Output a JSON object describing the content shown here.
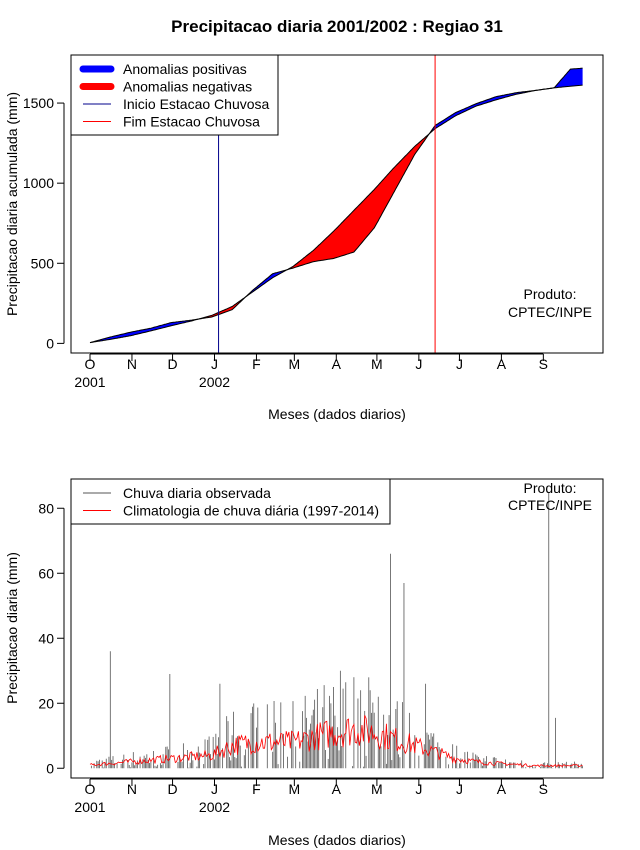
{
  "chart_data": [
    {
      "type": "area",
      "title": "Precipitacao diaria 2001/2002 : Regiao 31",
      "xlabel": "Meses (dados diarios)",
      "ylabel": "Precipitacao diaria acumulada (mm)",
      "x_tick_labels": [
        "O",
        "N",
        "D",
        "J",
        "F",
        "M",
        "A",
        "M",
        "J",
        "J",
        "A",
        "S"
      ],
      "year_labels": [
        "2001",
        "2002"
      ],
      "y_ticks": [
        0,
        500,
        1000,
        1500
      ],
      "ylim": [
        -60,
        1800
      ],
      "legend": {
        "placement": "top-left",
        "entries": [
          {
            "label": "Anomalias positivas",
            "color": "#0000ff",
            "style": "thick"
          },
          {
            "label": "Anomalias negativas",
            "color": "#ff0000",
            "style": "thick"
          },
          {
            "label": "Inicio Estacao Chuvosa",
            "color": "#00008b",
            "style": "thin"
          },
          {
            "label": "Fim Estacao Chuvosa",
            "color": "#ff0000",
            "style": "thin"
          }
        ]
      },
      "annotation": [
        "Produto:",
        "CPTEC/INPE"
      ],
      "season_start_day": 95,
      "season_end_day": 255,
      "series": [
        {
          "name": "Observada",
          "x_days": [
            0,
            15,
            30,
            45,
            60,
            75,
            90,
            105,
            120,
            135,
            150,
            165,
            180,
            195,
            210,
            225,
            240,
            255,
            270,
            285,
            300,
            315,
            330,
            343,
            355,
            364
          ],
          "values": [
            5,
            40,
            70,
            95,
            130,
            145,
            165,
            210,
            330,
            435,
            470,
            510,
            530,
            570,
            720,
            950,
            1180,
            1360,
            1440,
            1495,
            1540,
            1565,
            1580,
            1595,
            1712,
            1718
          ]
        },
        {
          "name": "Climatologia",
          "x_days": [
            0,
            15,
            30,
            45,
            60,
            75,
            90,
            105,
            120,
            135,
            150,
            165,
            180,
            195,
            210,
            225,
            240,
            255,
            270,
            285,
            300,
            315,
            330,
            343,
            355,
            364
          ],
          "values": [
            5,
            25,
            48,
            78,
            110,
            140,
            175,
            230,
            320,
            410,
            480,
            580,
            700,
            830,
            960,
            1100,
            1230,
            1340,
            1420,
            1480,
            1520,
            1555,
            1580,
            1595,
            1605,
            1612
          ]
        }
      ]
    },
    {
      "type": "bar",
      "title": "",
      "xlabel": "Meses (dados diarios)",
      "ylabel": "Precipitacao diaria (mm)",
      "x_tick_labels": [
        "O",
        "N",
        "D",
        "J",
        "F",
        "M",
        "A",
        "M",
        "J",
        "J",
        "A",
        "S"
      ],
      "year_labels": [
        "2001",
        "2002"
      ],
      "y_ticks": [
        0,
        20,
        40,
        60,
        80
      ],
      "ylim": [
        -3,
        89
      ],
      "legend": {
        "placement": "top-left",
        "entries": [
          {
            "label": "Chuva diaria observada",
            "color": "#555555"
          },
          {
            "label": "Climatologia de chuva diária (1997-2014)",
            "color": "#ff0000"
          }
        ]
      },
      "annotation": [
        "Produto:",
        "CPTEC/INPE"
      ],
      "notable_observed_values": [
        {
          "day": 15,
          "value": 36
        },
        {
          "day": 59,
          "value": 29
        },
        {
          "day": 96,
          "value": 26
        },
        {
          "day": 185,
          "value": 30
        },
        {
          "day": 180,
          "value": 25
        },
        {
          "day": 200,
          "value": 24
        },
        {
          "day": 207,
          "value": 24
        },
        {
          "day": 213,
          "value": 22
        },
        {
          "day": 222,
          "value": 66
        },
        {
          "day": 232,
          "value": 57
        },
        {
          "day": 248,
          "value": 26
        },
        {
          "day": 339,
          "value": 85
        },
        {
          "day": 344,
          "value": 15.5
        }
      ],
      "climatology_x_days": [
        0,
        30,
        60,
        90,
        105,
        120,
        150,
        180,
        195,
        210,
        225,
        240,
        255,
        270,
        285,
        300,
        330,
        364
      ],
      "climatology_values": [
        1,
        2,
        3,
        4,
        7,
        8,
        8,
        11,
        12,
        11,
        9,
        7,
        5,
        3,
        2,
        1.5,
        0.8,
        0.8
      ]
    }
  ]
}
